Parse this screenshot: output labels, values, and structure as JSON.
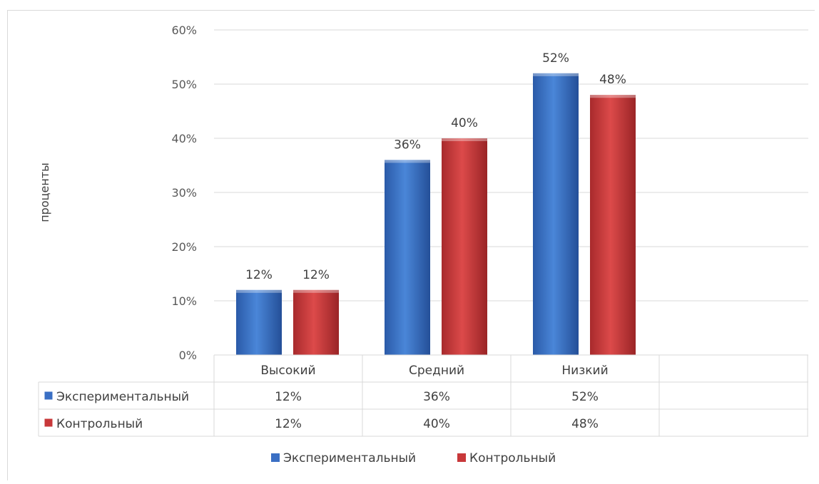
{
  "chart_data": {
    "type": "bar",
    "title": "",
    "xlabel": "",
    "ylabel": "проценты",
    "ylim": [
      0,
      60
    ],
    "y_ticks": [
      "0%",
      "10%",
      "20%",
      "30%",
      "40%",
      "50%",
      "60%"
    ],
    "categories": [
      "Высокий",
      "Средний",
      "Низкий"
    ],
    "series": [
      {
        "name": "Экспериментальный",
        "values": [
          12,
          36,
          52
        ],
        "labels": [
          "12%",
          "36%",
          "52%"
        ],
        "color": "#3a6fc4"
      },
      {
        "name": "Контрольный",
        "values": [
          12,
          40,
          48
        ],
        "labels": [
          "12%",
          "40%",
          "48%"
        ],
        "color": "#c8383a"
      }
    ],
    "grid": true,
    "legend": "bottom",
    "data_table": true
  }
}
